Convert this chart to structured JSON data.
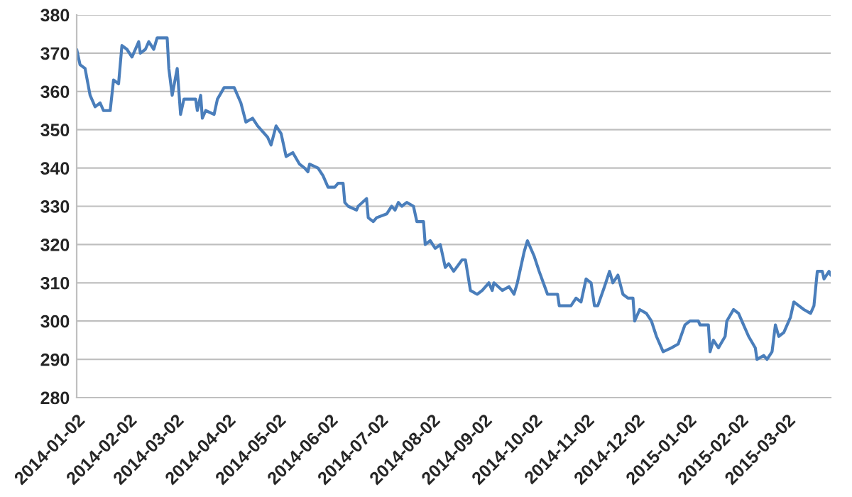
{
  "chart_data": {
    "type": "line",
    "x": [
      "2014-01-02",
      "2014-01-04",
      "2014-01-07",
      "2014-01-10",
      "2014-01-13",
      "2014-01-16",
      "2014-01-18",
      "2014-01-22",
      "2014-01-24",
      "2014-01-27",
      "2014-01-29",
      "2014-02-01",
      "2014-02-04",
      "2014-02-08",
      "2014-02-09",
      "2014-02-12",
      "2014-02-14",
      "2014-02-17",
      "2014-02-19",
      "2014-02-25",
      "2014-02-26",
      "2014-02-28",
      "2014-03-03",
      "2014-03-05",
      "2014-03-07",
      "2014-03-11",
      "2014-03-14",
      "2014-03-15",
      "2014-03-17",
      "2014-03-18",
      "2014-03-20",
      "2014-03-25",
      "2014-03-27",
      "2014-03-31",
      "2014-04-06",
      "2014-04-10",
      "2014-04-13",
      "2014-04-17",
      "2014-04-20",
      "2014-04-26",
      "2014-04-28",
      "2014-05-01",
      "2014-05-04",
      "2014-05-07",
      "2014-05-11",
      "2014-05-15",
      "2014-05-18",
      "2014-05-20",
      "2014-05-21",
      "2014-05-26",
      "2014-05-29",
      "2014-06-01",
      "2014-06-05",
      "2014-06-07",
      "2014-06-10",
      "2014-06-11",
      "2014-06-13",
      "2014-06-18",
      "2014-06-19",
      "2014-06-24",
      "2014-06-25",
      "2014-06-28",
      "2014-06-30",
      "2014-07-06",
      "2014-07-09",
      "2014-07-11",
      "2014-07-13",
      "2014-07-15",
      "2014-07-18",
      "2014-07-22",
      "2014-07-24",
      "2014-07-28",
      "2014-07-29",
      "2014-08-01",
      "2014-08-04",
      "2014-08-07",
      "2014-08-10",
      "2014-08-12",
      "2014-08-15",
      "2014-08-20",
      "2014-08-22",
      "2014-08-25",
      "2014-08-29",
      "2014-09-01",
      "2014-09-05",
      "2014-09-07",
      "2014-09-08",
      "2014-09-13",
      "2014-09-17",
      "2014-09-20",
      "2014-09-22",
      "2014-09-26",
      "2014-09-28",
      "2014-10-02",
      "2014-10-05",
      "2014-10-10",
      "2014-10-13",
      "2014-10-16",
      "2014-10-17",
      "2014-10-21",
      "2014-10-24",
      "2014-10-27",
      "2014-10-30",
      "2014-10-31",
      "2014-11-02",
      "2014-11-05",
      "2014-11-07",
      "2014-11-09",
      "2014-11-13",
      "2014-11-16",
      "2014-11-18",
      "2014-11-21",
      "2014-11-24",
      "2014-11-27",
      "2014-11-30",
      "2014-12-01",
      "2014-12-04",
      "2014-12-08",
      "2014-12-11",
      "2014-12-14",
      "2014-12-18",
      "2014-12-23",
      "2014-12-27",
      "2014-12-31",
      "2015-01-03",
      "2015-01-08",
      "2015-01-09",
      "2015-01-14",
      "2015-01-15",
      "2015-01-17",
      "2015-01-20",
      "2015-01-24",
      "2015-01-25",
      "2015-01-29",
      "2015-02-01",
      "2015-02-04",
      "2015-02-07",
      "2015-02-11",
      "2015-02-12",
      "2015-02-16",
      "2015-02-18",
      "2015-02-21",
      "2015-02-23",
      "2015-02-25",
      "2015-02-28",
      "2015-03-04",
      "2015-03-06",
      "2015-03-09",
      "2015-03-12",
      "2015-03-16",
      "2015-03-18",
      "2015-03-20",
      "2015-03-23",
      "2015-03-24",
      "2015-03-27",
      "2015-03-28"
    ],
    "series": [
      {
        "color": "#4a7ebb",
        "values": [
          371,
          367,
          366,
          359,
          356,
          357,
          355,
          355,
          363,
          362,
          372,
          371,
          369,
          373,
          370,
          371,
          373,
          371,
          374,
          374,
          366,
          359,
          366,
          354,
          358,
          358,
          358,
          355,
          359,
          353,
          355,
          354,
          358,
          361,
          361,
          357,
          352,
          353,
          351,
          348,
          346,
          351,
          349,
          343,
          344,
          341,
          340,
          339,
          341,
          340,
          338,
          335,
          335,
          336,
          336,
          331,
          330,
          329,
          330,
          332,
          327,
          326,
          327,
          328,
          330,
          329,
          331,
          330,
          331,
          330,
          326,
          326,
          320,
          321,
          319,
          320,
          314,
          315,
          313,
          316,
          316,
          308,
          307,
          308,
          310,
          308,
          310,
          308,
          309,
          307,
          310,
          318,
          321,
          317,
          313,
          307,
          307,
          307,
          304,
          304,
          304,
          306,
          305,
          307,
          311,
          310,
          304,
          304,
          309,
          313,
          310,
          312,
          307,
          306,
          306,
          300,
          303,
          302,
          300,
          296,
          292,
          293,
          294,
          299,
          300,
          300,
          299,
          299,
          292,
          295,
          293,
          296,
          300,
          303,
          302,
          299,
          296,
          293,
          290,
          291,
          290,
          292,
          299,
          296,
          297,
          301,
          305,
          304,
          303,
          302,
          304,
          313,
          313,
          311,
          313,
          312
        ]
      }
    ],
    "xlim": [
      "2014-01-02",
      "2015-03-28"
    ],
    "xticks": [
      "2014-01-02",
      "2014-02-02",
      "2014-03-02",
      "2014-04-02",
      "2014-05-02",
      "2014-06-02",
      "2014-07-02",
      "2014-08-02",
      "2014-09-02",
      "2014-10-02",
      "2014-11-02",
      "2014-12-02",
      "2015-01-02",
      "2015-02-02",
      "2015-03-02"
    ],
    "ylim": [
      280,
      380
    ],
    "yticks": [
      280,
      290,
      300,
      310,
      320,
      330,
      340,
      350,
      360,
      370,
      380
    ],
    "grid": "y",
    "marker": "none",
    "line_style": "solid"
  }
}
